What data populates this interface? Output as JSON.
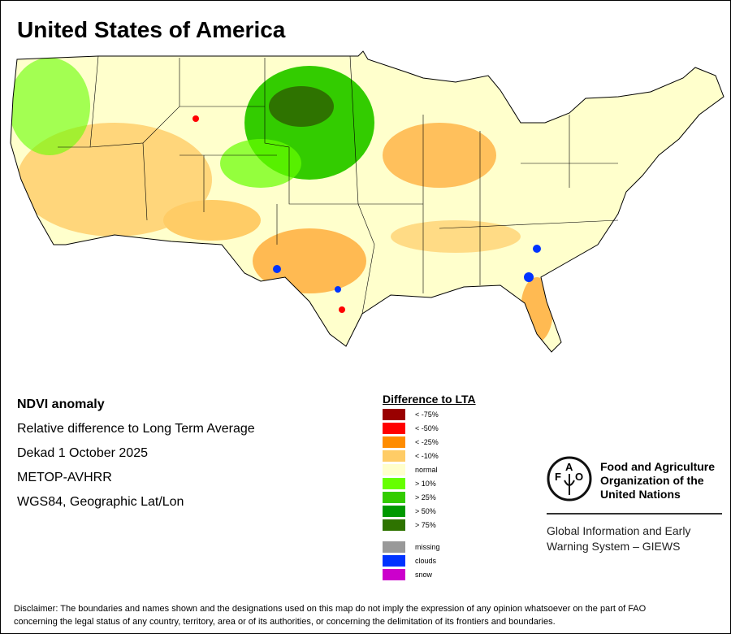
{
  "title": "United States of America",
  "info": [
    "NDVI anomaly",
    "Relative difference to Long Term Average",
    "Dekad 1 October 2025",
    "METOP-AVHRR",
    "WGS84, Geographic Lat/Lon"
  ],
  "legend": {
    "title": "Difference to LTA",
    "items": [
      {
        "label": "< -75%",
        "color": "#990000"
      },
      {
        "label": "< -50%",
        "color": "#ff0000"
      },
      {
        "label": "< -25%",
        "color": "#ff8c00"
      },
      {
        "label": "< -10%",
        "color": "#ffcc66"
      },
      {
        "label": "normal",
        "color": "#ffffcc"
      },
      {
        "label": "> 10%",
        "color": "#66ff00"
      },
      {
        "label": "> 25%",
        "color": "#33cc00"
      },
      {
        "label": "> 50%",
        "color": "#009900"
      },
      {
        "label": "> 75%",
        "color": "#2e7300"
      }
    ],
    "extra": [
      {
        "label": "missing",
        "color": "#999999"
      },
      {
        "label": "clouds",
        "color": "#0033ff"
      },
      {
        "label": "snow",
        "color": "#cc00cc"
      }
    ]
  },
  "fao": {
    "logo_text": "FAO FIAT PANIS",
    "name": [
      "Food and Agriculture",
      "Organization of the",
      "United Nations"
    ],
    "giews": [
      "Global Information and Early",
      "Warning System – GIEWS"
    ]
  },
  "disclaimer": [
    "Disclaimer: The boundaries and names shown and the designations used on this map do not imply the expression of any opinion whatsoever on the part of FAO",
    "concerning the legal status of any country, territory, area or of its authorities, or concerning the delimitation of its frontiers and boundaries."
  ]
}
